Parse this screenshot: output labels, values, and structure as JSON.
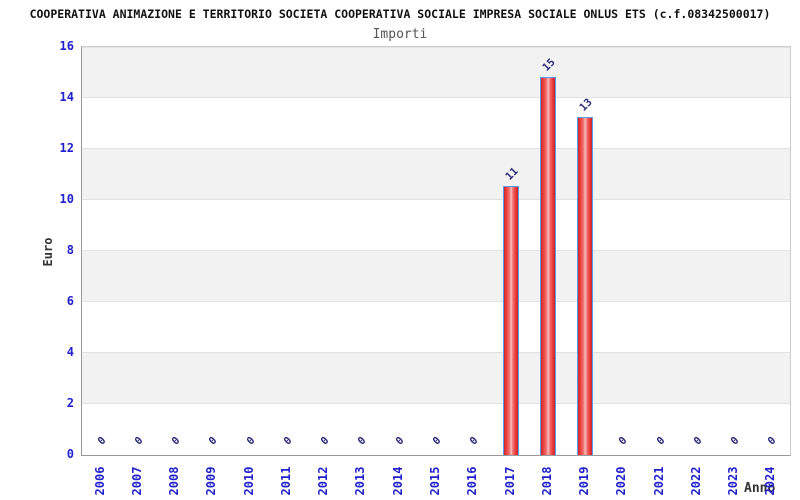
{
  "chart_data": {
    "type": "bar",
    "title": "COOPERATIVA ANIMAZIONE E TERRITORIO SOCIETA COOPERATIVA SOCIALE IMPRESA SOCIALE ONLUS ETS (c.f.08342500017)",
    "subtitle": "Importi",
    "xlabel": "Anno",
    "ylabel": "Euro",
    "ylim": [
      0,
      16
    ],
    "yticks": [
      0,
      2,
      4,
      6,
      8,
      10,
      12,
      14,
      16
    ],
    "grid": "horizontal gridlines with alternating gray bands on 2-unit intervals",
    "legend_position": "none",
    "categories": [
      "2006",
      "2007",
      "2008",
      "2009",
      "2010",
      "2011",
      "2012",
      "2013",
      "2014",
      "2015",
      "2016",
      "2017",
      "2018",
      "2019",
      "2020",
      "2021",
      "2022",
      "2023",
      "2024"
    ],
    "values": [
      0,
      0,
      0,
      0,
      0,
      0,
      0,
      0,
      0,
      0,
      0,
      10.5,
      14.8,
      13.2,
      0,
      0,
      0,
      0,
      0
    ],
    "bar_labels": [
      "0",
      "0",
      "0",
      "0",
      "0",
      "0",
      "0",
      "0",
      "0",
      "0",
      "0",
      "11",
      "15",
      "13",
      "0",
      "0",
      "0",
      "0",
      "0"
    ],
    "colors": {
      "bar_fill": "#ef3b3b",
      "bar_fill_light": "#f8bebe",
      "bar_fill_dark": "#c62828",
      "bar_border": "#5b9bee",
      "tick_label": "#2020cc",
      "value_label": "#2b2b78",
      "band": "#f2f2f2",
      "gridline": "#e2e2e2",
      "title_text": "#111111",
      "subtitle_text": "#555555",
      "axis_title_text": "#333333"
    }
  }
}
